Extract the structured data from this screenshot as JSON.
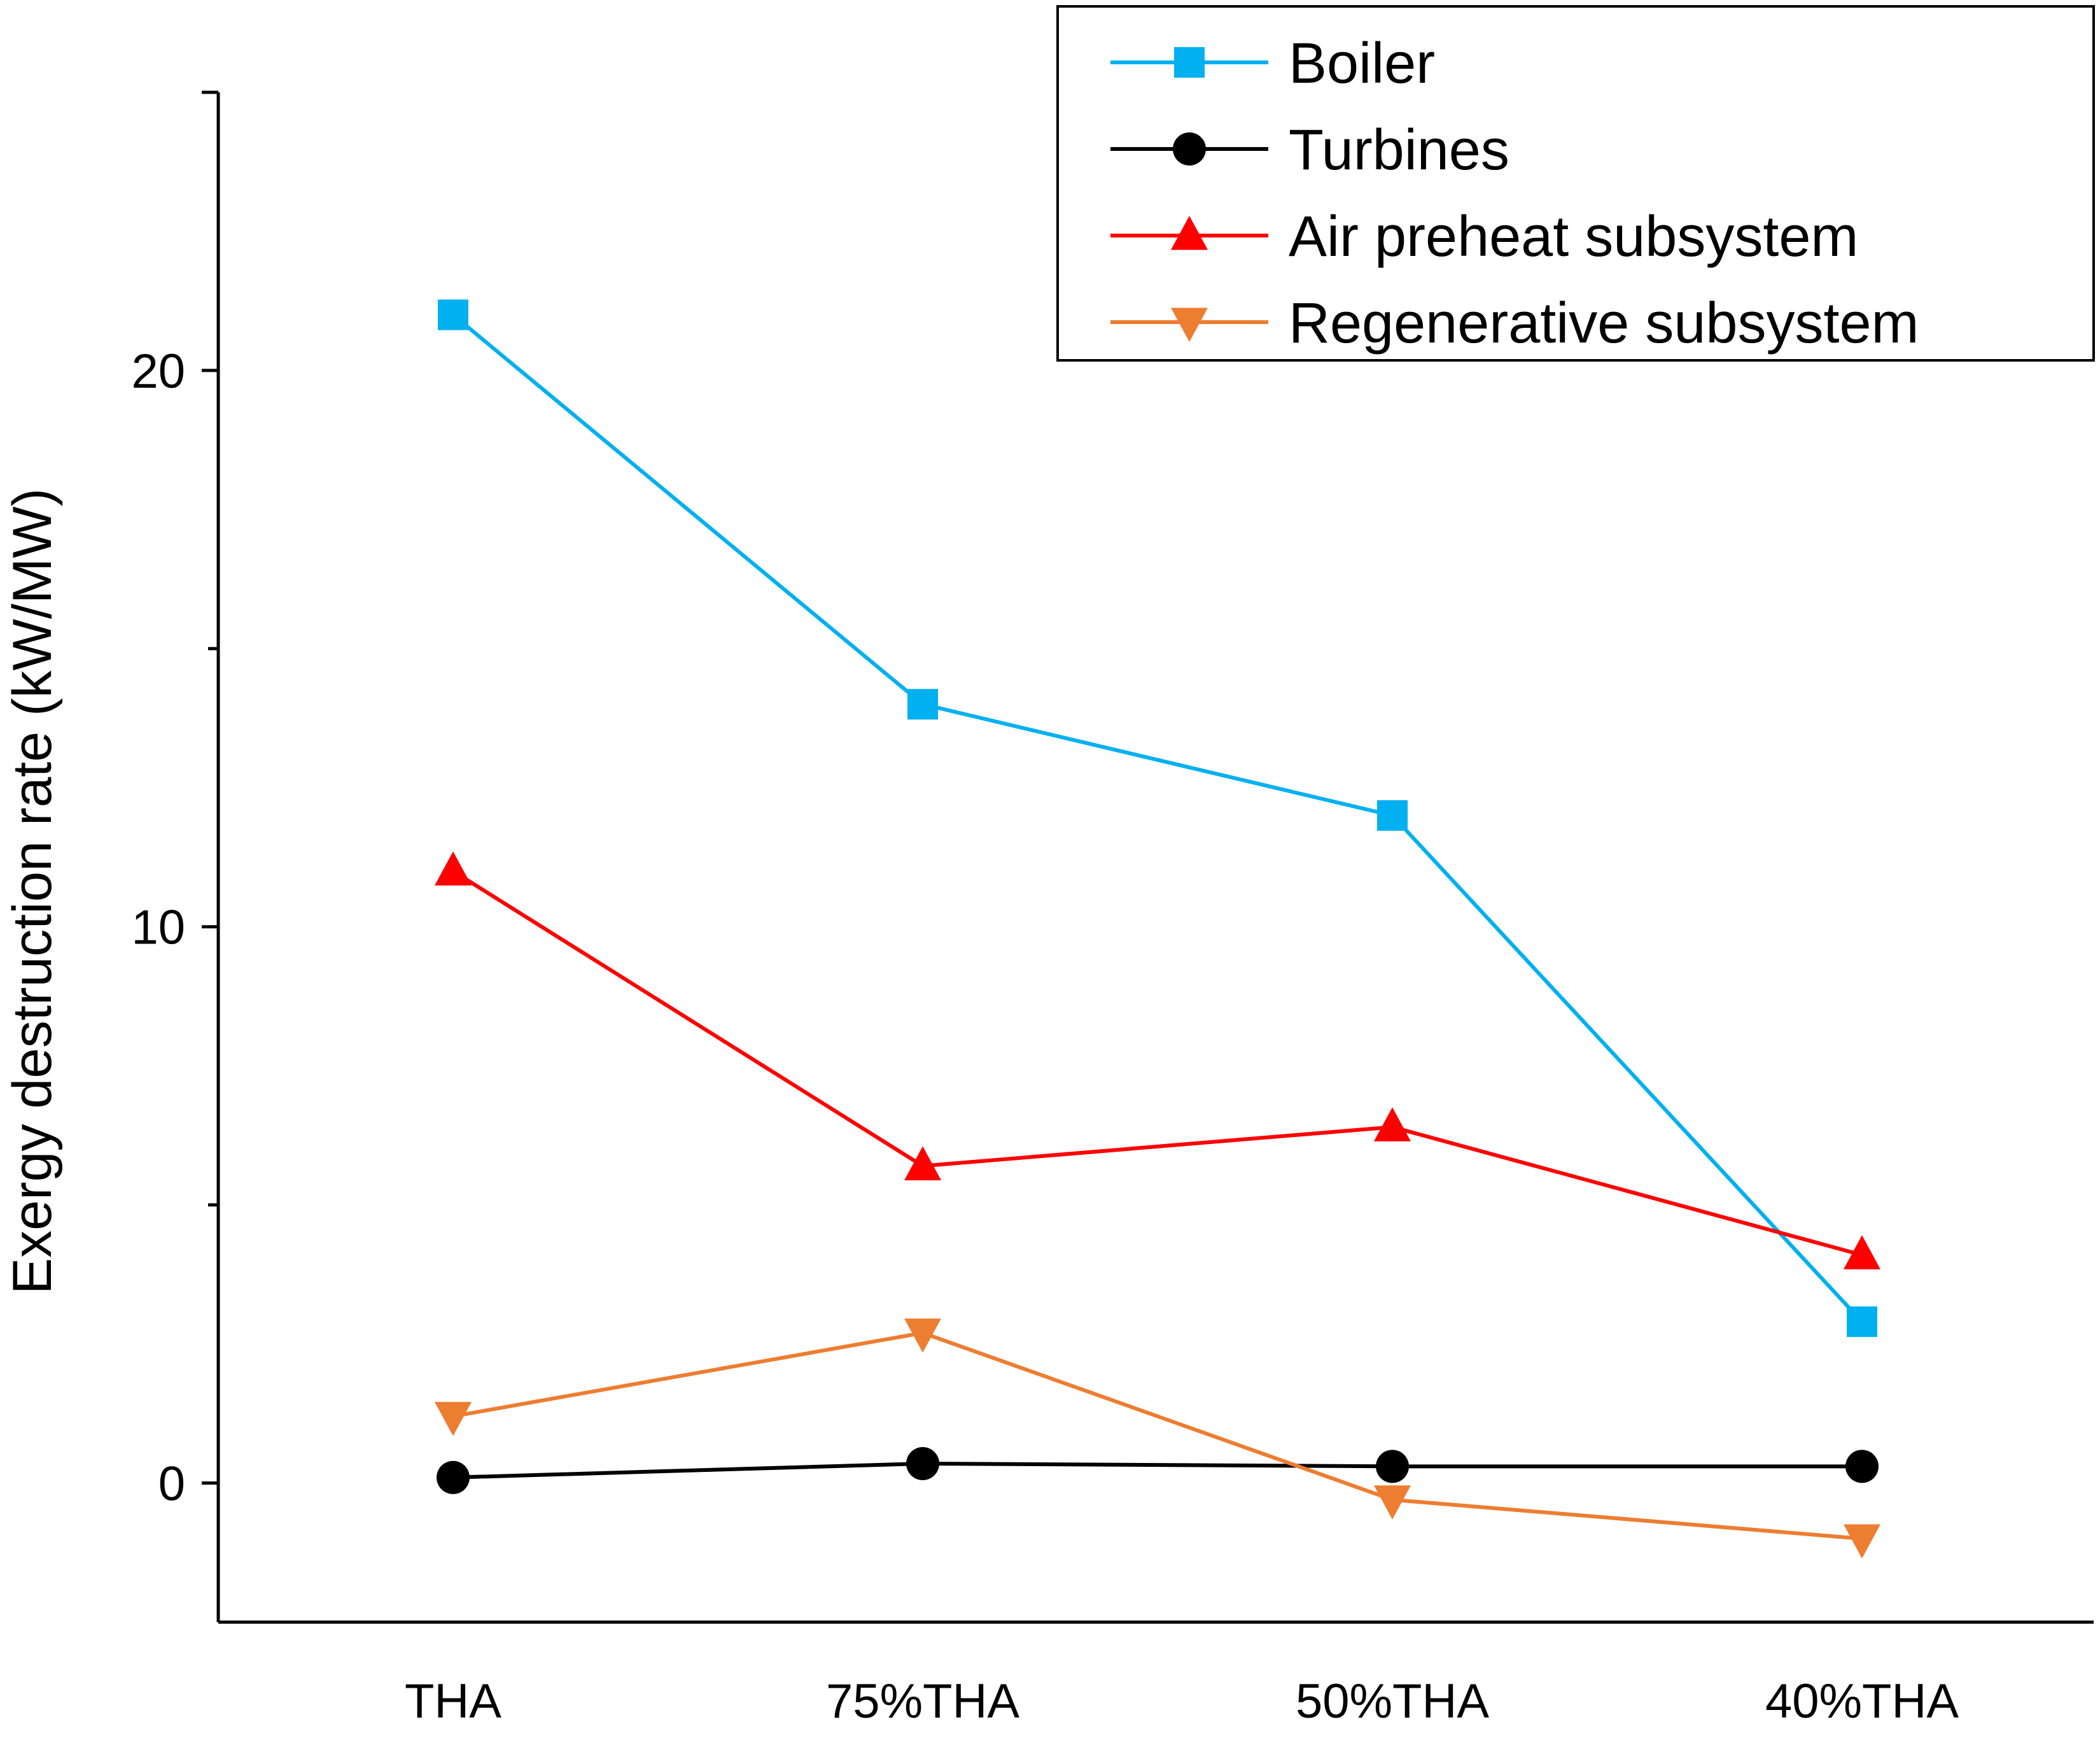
{
  "chart_data": {
    "type": "line",
    "categories": [
      "THA",
      "75%THA",
      "50%THA",
      "40%THA"
    ],
    "ylabel": "Exergy destruction rate (kW/MW)",
    "ylim": [
      -2.5,
      25
    ],
    "yticks": [
      0,
      10,
      20
    ],
    "grid": false,
    "legend_position": "top-right",
    "series": [
      {
        "name": "Boiler",
        "color": "#00B0F0",
        "marker": "square",
        "values": [
          21.0,
          14.0,
          12.0,
          2.9
        ]
      },
      {
        "name": "Turbines",
        "color": "#000000",
        "marker": "circle",
        "values": [
          0.1,
          0.35,
          0.3,
          0.3
        ]
      },
      {
        "name": "Air preheat subsystem",
        "color": "#FF0000",
        "marker": "triangle-up",
        "values": [
          11.0,
          5.7,
          6.4,
          4.1
        ]
      },
      {
        "name": "Regenerative subsystem",
        "color": "#ED7D31",
        "marker": "triangle-down",
        "values": [
          1.2,
          2.7,
          -0.3,
          -1.0
        ]
      }
    ]
  }
}
